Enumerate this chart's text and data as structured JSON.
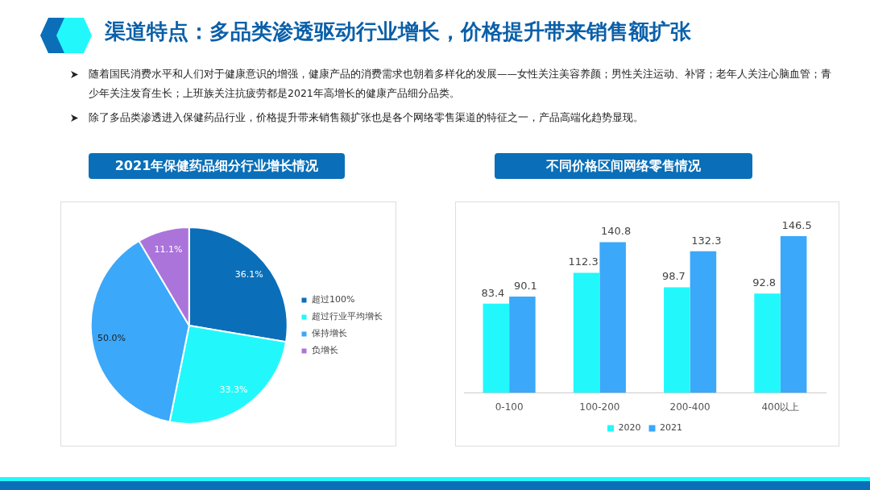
{
  "chart_data": [
    {
      "type": "other",
      "title": "渠道特点：多品类渗透驱动行业增长，价格提升带来销售额扩张",
      "annotations": [
        "随着国民消费水平和人们对于健康意识的增强，健康产品的消费需求也朝着多样化的发展——女性关注美容养颜；男性关注运动、补肾；老年人关注心脑血管；青少年关注发育生长；上班族关注抗疲劳都是2021年高增长的健康产品细分品类。",
        "除了多品类渗透进入保健药品行业，价格提升带来销售额扩张也是各个网络零售渠道的特征之一，产品高端化趋势显现。"
      ]
    },
    {
      "type": "pie",
      "title": "2021年保健药品细分行业增长情况",
      "categories": [
        "超过100%",
        "超过行业平均增长",
        "保持增长",
        "负增长"
      ],
      "values": [
        36.1,
        33.3,
        50.0,
        11.1
      ],
      "value_labels": [
        "36.1%",
        "33.3%",
        "50.0%",
        "11.1%"
      ],
      "colors": [
        "#0a6fb8",
        "#22f8fb",
        "#3ba8fa",
        "#ab74db"
      ],
      "legend": "right"
    },
    {
      "type": "bar",
      "title": "不同价格区间网络零售情况",
      "categories": [
        "0-100",
        "100-200",
        "200-400",
        "400以上"
      ],
      "series": [
        {
          "name": "2020",
          "color": "#22f8fb",
          "values": [
            83.4,
            112.3,
            98.7,
            92.8
          ]
        },
        {
          "name": "2021",
          "color": "#3ba8fa",
          "values": [
            90.1,
            140.8,
            132.3,
            146.5
          ]
        }
      ],
      "tick_labels": "x",
      "data_labels": true,
      "grid": false,
      "legend": "bottom"
    }
  ]
}
